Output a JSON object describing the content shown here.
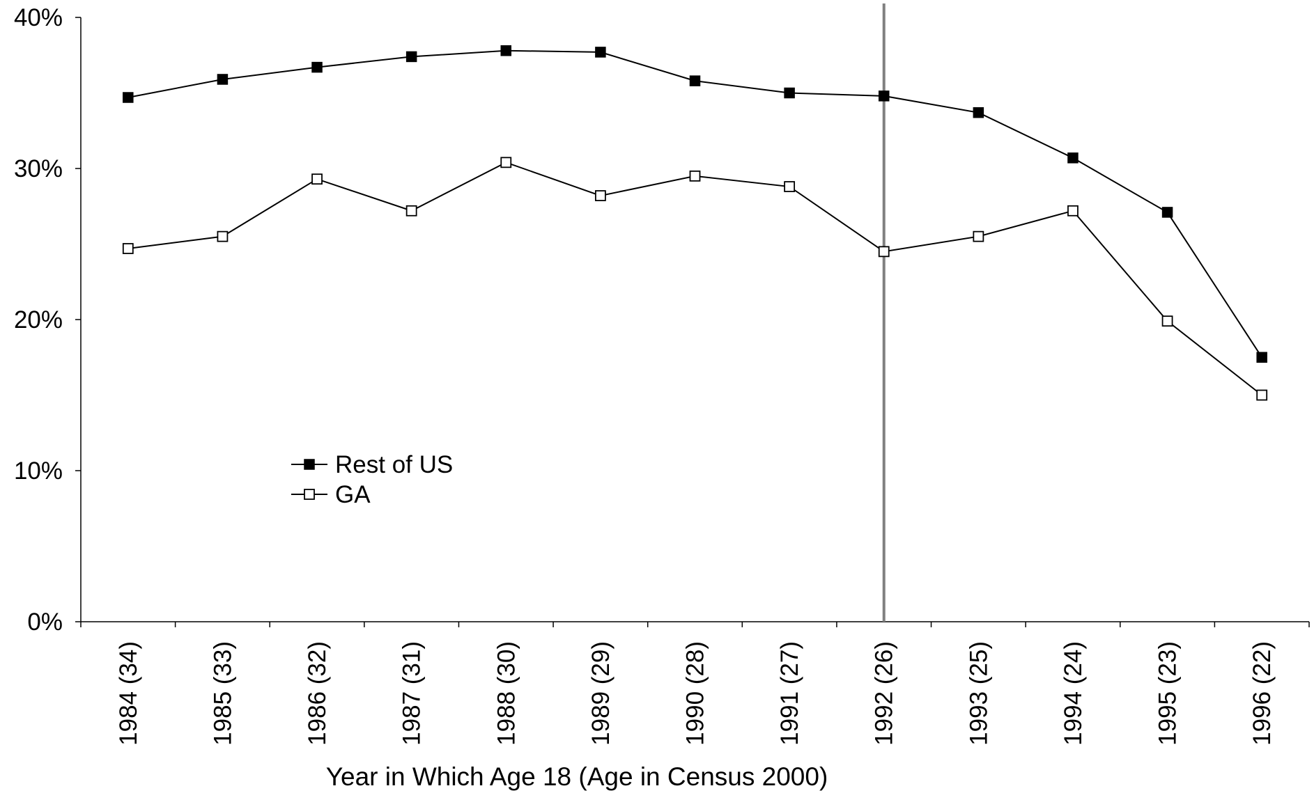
{
  "chart_data": {
    "type": "line",
    "title": "",
    "xlabel": "Year in Which Age 18 (Age in Census 2000)",
    "ylabel": "",
    "categories": [
      "1984 (34)",
      "1985 (33)",
      "1986 (32)",
      "1987 (31)",
      "1988 (30)",
      "1989 (29)",
      "1990 (28)",
      "1991 (27)",
      "1992 (26)",
      "1993 (25)",
      "1994 (24)",
      "1995 (23)",
      "1996 (22)"
    ],
    "ylim": [
      0,
      40
    ],
    "y_ticks": [
      0,
      10,
      20,
      30,
      40
    ],
    "y_tick_labels": [
      "0%",
      "10%",
      "20%",
      "30%",
      "40%"
    ],
    "grid": false,
    "legend_position": "lower-left inside plot",
    "series": [
      {
        "name": "Rest of US",
        "marker": "filled-square",
        "values": [
          34.7,
          35.9,
          36.7,
          37.4,
          37.8,
          37.7,
          35.8,
          35.0,
          34.8,
          33.7,
          30.7,
          27.1,
          17.5
        ]
      },
      {
        "name": "GA",
        "marker": "open-square",
        "values": [
          24.7,
          25.5,
          29.3,
          27.2,
          30.4,
          28.2,
          29.5,
          28.8,
          24.5,
          25.5,
          27.2,
          19.9,
          15.0
        ]
      }
    ],
    "vertical_reference_line": {
      "category": "1992 (26)",
      "color": "#808080"
    },
    "colors": {
      "series_line": "#000000",
      "reference_line": "#808080",
      "axis": "#000000"
    }
  }
}
